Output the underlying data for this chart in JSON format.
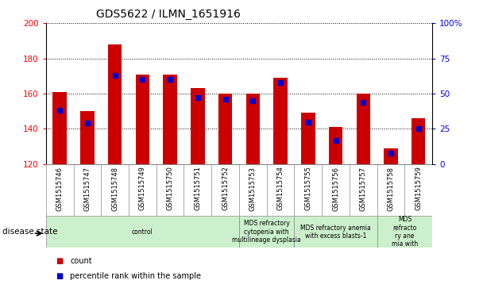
{
  "title": "GDS5622 / ILMN_1651916",
  "samples": [
    "GSM1515746",
    "GSM1515747",
    "GSM1515748",
    "GSM1515749",
    "GSM1515750",
    "GSM1515751",
    "GSM1515752",
    "GSM1515753",
    "GSM1515754",
    "GSM1515755",
    "GSM1515756",
    "GSM1515757",
    "GSM1515758",
    "GSM1515759"
  ],
  "counts": [
    161,
    150,
    188,
    171,
    171,
    163,
    160,
    160,
    169,
    149,
    141,
    160,
    129,
    146
  ],
  "percentile_ranks": [
    38,
    29,
    63,
    60,
    60,
    47,
    46,
    45,
    58,
    30,
    17,
    44,
    8,
    25
  ],
  "ylim_left": [
    120,
    200
  ],
  "ylim_right": [
    0,
    100
  ],
  "yticks_left": [
    120,
    140,
    160,
    180,
    200
  ],
  "yticks_right": [
    0,
    25,
    50,
    75,
    100
  ],
  "bar_color": "#cc0000",
  "dot_color": "#0000cc",
  "dot_size": 4,
  "bar_width": 0.5,
  "disease_groups": [
    {
      "label": "control",
      "start": 0,
      "end": 7,
      "color": "#ccf0cc"
    },
    {
      "label": "MDS refractory\ncytopenia with\nmultilineage dysplasia",
      "start": 7,
      "end": 9,
      "color": "#ccf0cc"
    },
    {
      "label": "MDS refractory anemia\nwith excess blasts-1",
      "start": 9,
      "end": 12,
      "color": "#ccf0cc"
    },
    {
      "label": "MDS\nrefracto\nry ane\nmia with",
      "start": 12,
      "end": 14,
      "color": "#ccf0cc"
    }
  ],
  "xlabel_disease": "disease state",
  "legend_count": "count",
  "legend_percentile": "percentile rank within the sample",
  "sample_bg_color": "#d8d8d8",
  "spine_color": "#888888"
}
